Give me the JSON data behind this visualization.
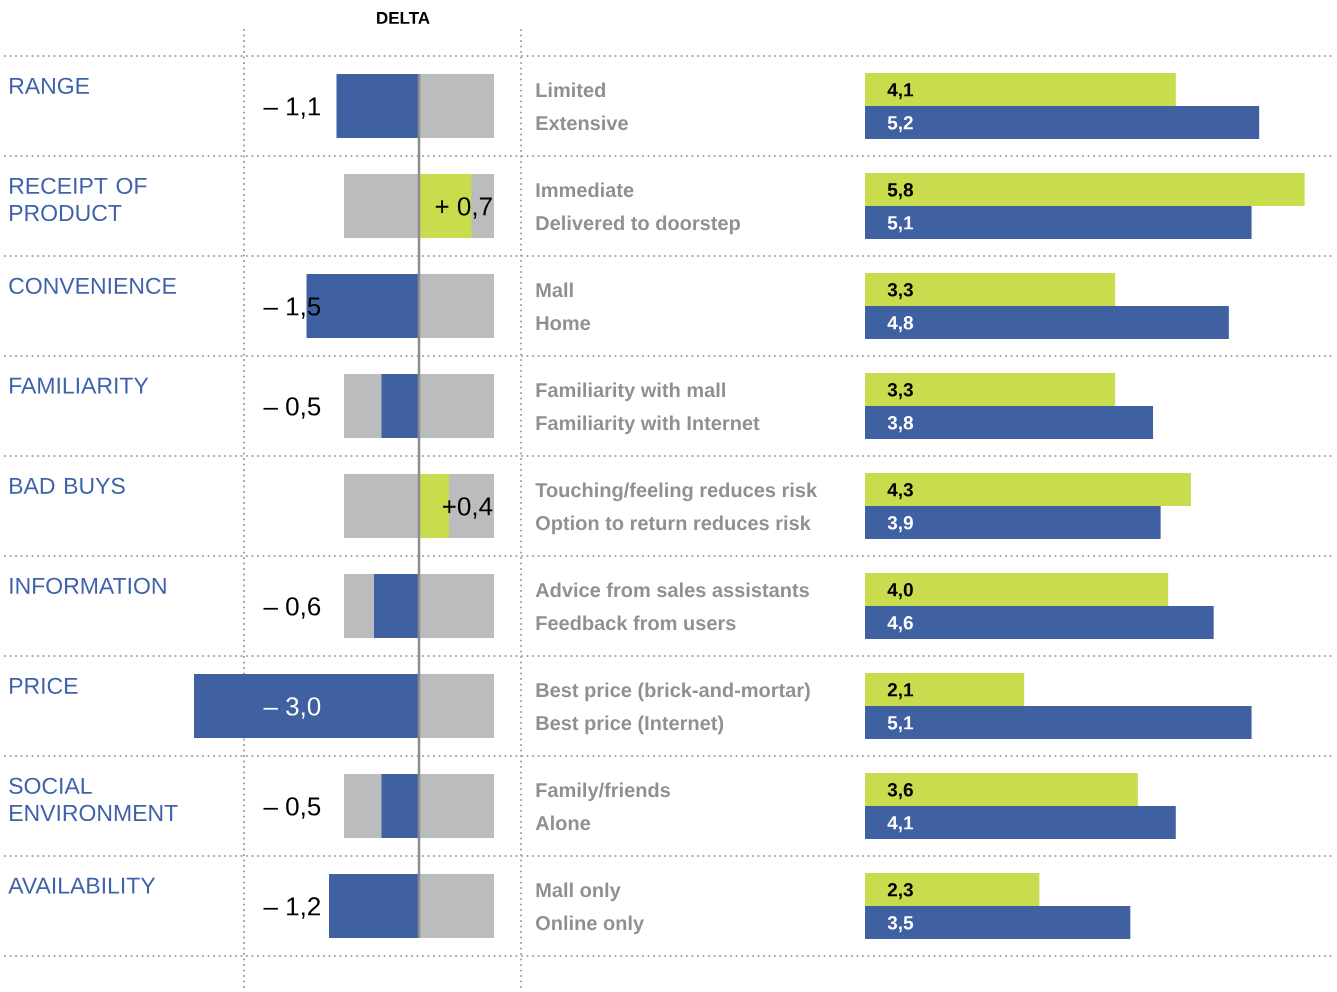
{
  "chart_data": [
    {
      "type": "bar",
      "orientation": "horizontal",
      "title": "DELTA",
      "categories": [
        "RANGE",
        "RECEIPT OF PRODUCT",
        "CONVENIENCE",
        "FAMILIARITY",
        "BAD BUYS",
        "INFORMATION",
        "PRICE",
        "SOCIAL ENVIRONMENT",
        "AVAILABILITY"
      ],
      "values": [
        -1.1,
        0.7,
        -1.5,
        -0.5,
        0.4,
        -0.6,
        -3.0,
        -0.5,
        -1.2
      ],
      "colors": [
        "#3f61a2",
        "#c9dc4e",
        "#3f61a2",
        "#3f61a2",
        "#c9dc4e",
        "#3f61a2",
        "#3f61a2",
        "#3f61a2",
        "#3f61a2"
      ],
      "value_labels": [
        "– 1,1",
        "+ 0,7",
        "– 1,5",
        "– 0,5",
        "+0,4",
        "– 0,6",
        "– 3,0",
        "– 0,5",
        "– 1,2"
      ],
      "xlim": [
        -3.0,
        1.36
      ],
      "bands": [
        {
          "axis": "x",
          "from": -1,
          "to": 1,
          "color": "#bbbcbe"
        }
      ],
      "ref_lines": [
        {
          "axis": "x",
          "value": 0,
          "color": "#8c8c8c"
        }
      ],
      "tick_labels": "y"
    },
    {
      "type": "bar",
      "orientation": "horizontal",
      "categories": [
        "Limited",
        "Extensive",
        "Immediate",
        "Delivered to doorstep",
        "Mall",
        "Home",
        "Familiarity with mall",
        "Familiarity with Internet",
        "Touching/feeling reduces risk",
        "Option to return reduces risk",
        "Advice from sales assistants",
        "Feedback from users",
        "Best price (brick-and-mortar)",
        "Best price (Internet)",
        "Family/friends",
        "Alone",
        "Mall only",
        "Online only"
      ],
      "values": [
        4.1,
        5.2,
        5.8,
        5.1,
        3.3,
        4.8,
        3.3,
        3.8,
        4.3,
        3.9,
        4.0,
        4.6,
        2.1,
        5.1,
        3.6,
        4.1,
        2.3,
        3.5
      ],
      "colors": [
        "#c9dc4e",
        "#3f61a2",
        "#c9dc4e",
        "#3f61a2",
        "#c9dc4e",
        "#3f61a2",
        "#c9dc4e",
        "#3f61a2",
        "#c9dc4e",
        "#3f61a2",
        "#c9dc4e",
        "#3f61a2",
        "#c9dc4e",
        "#3f61a2",
        "#c9dc4e",
        "#3f61a2",
        "#c9dc4e",
        "#3f61a2"
      ],
      "value_labels": [
        "4,1",
        "5,2",
        "5,8",
        "5,1",
        "3,3",
        "4,8",
        "3,3",
        "3,8",
        "4,3",
        "3,9",
        "4,0",
        "4,6",
        "2,1",
        "5,1",
        "3,6",
        "4,1",
        "2,3",
        "3,5"
      ],
      "xlim": [
        0,
        6.2
      ],
      "tick_labels": "y"
    }
  ]
}
